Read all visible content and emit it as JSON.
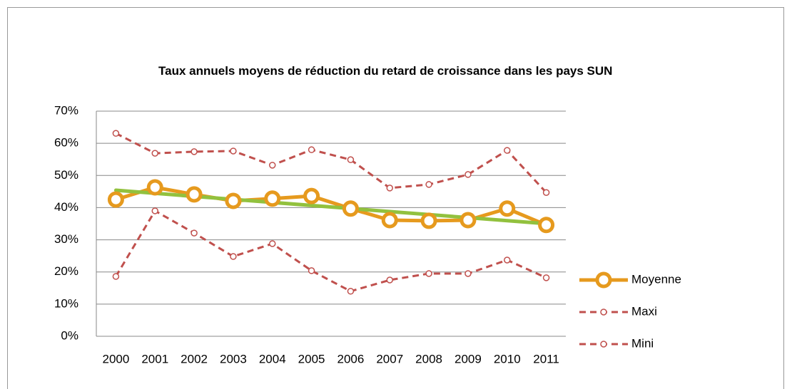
{
  "chart_data": {
    "type": "line",
    "title": "Taux annuels moyens de réduction du retard de croissance dans les pays SUN",
    "categories": [
      "2000",
      "2001",
      "2002",
      "2003",
      "2004",
      "2005",
      "2006",
      "2007",
      "2008",
      "2009",
      "2010",
      "2011"
    ],
    "series": [
      {
        "name": "Moyenne",
        "color": "#e69a1e",
        "values": [
          42.5,
          46.3,
          44.1,
          42.1,
          42.8,
          43.6,
          39.7,
          36.1,
          35.9,
          36.1,
          39.7,
          34.6
        ]
      },
      {
        "name": "Maxi",
        "color": "#c0504d",
        "values": [
          63.1,
          56.9,
          57.4,
          57.6,
          53.2,
          58.0,
          54.9,
          46.1,
          47.2,
          50.3,
          57.8,
          44.7
        ]
      },
      {
        "name": "Mini",
        "color": "#c0504d",
        "values": [
          18.6,
          39.0,
          32.1,
          24.8,
          28.8,
          20.4,
          14.0,
          17.5,
          19.5,
          19.5,
          23.7,
          18.2
        ]
      }
    ],
    "trendline": {
      "color": "#92c13e",
      "values": [
        45.4,
        35.0
      ]
    },
    "ylim": [
      0,
      70
    ],
    "yticks": [
      {
        "value": 0,
        "label": "0%"
      },
      {
        "value": 10,
        "label": "10%"
      },
      {
        "value": 20,
        "label": "20%"
      },
      {
        "value": 30,
        "label": "30%"
      },
      {
        "value": 40,
        "label": "40%"
      },
      {
        "value": 50,
        "label": "50%"
      },
      {
        "value": 60,
        "label": "60%"
      },
      {
        "value": 70,
        "label": "70%"
      }
    ],
    "grid": true,
    "legend": "right"
  }
}
